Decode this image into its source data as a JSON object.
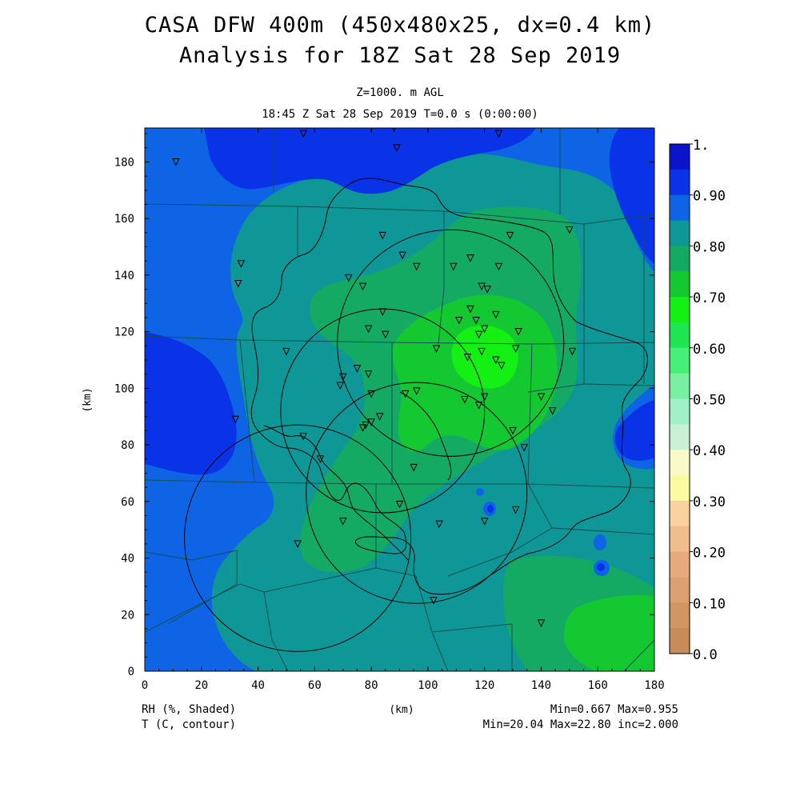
{
  "title": {
    "line1": "CASA DFW 400m (450x480x25, dx=0.4 km)",
    "line2": "Analysis for 18Z Sat 28 Sep 2019"
  },
  "subtitle": {
    "level": "Z=1000. m AGL",
    "time": "18:45 Z Sat 28 Sep 2019   T=0.0 s (0:00:00)"
  },
  "axes": {
    "x_label": "(km)",
    "y_label": "(km)",
    "x_ticks": [
      "0",
      "20",
      "40",
      "60",
      "80",
      "100",
      "120",
      "140",
      "160",
      "180"
    ],
    "y_ticks": [
      "0",
      "20",
      "40",
      "60",
      "80",
      "100",
      "120",
      "140",
      "160",
      "180"
    ],
    "x_range": [
      0,
      180
    ],
    "y_range": [
      0,
      192
    ]
  },
  "colorbar": {
    "labels": [
      "1.",
      "0.90",
      "0.80",
      "0.70",
      "0.60",
      "0.50",
      "0.40",
      "0.30",
      "0.20",
      "0.10",
      "0.0"
    ],
    "colors": [
      "#0a14c8",
      "#0a32e6",
      "#0f64e6",
      "#0f9696",
      "#14aa64",
      "#14c832",
      "#14f014",
      "#1ee650",
      "#46f078",
      "#78f0a0",
      "#a0f0c8",
      "#c8f0d2",
      "#fafac8",
      "#fafaa0",
      "#fad2a0",
      "#f0be8c",
      "#e6aa7d",
      "#dca073",
      "#d29664",
      "#c88c5a"
    ]
  },
  "footer": {
    "left1": "RH (%, Shaded)",
    "left2": "T (C, contour)",
    "center": "(km)",
    "right1": "Min=0.667 Max=0.955",
    "right2": "Min=20.04 Max=22.80 inc=2.000"
  },
  "map": {
    "colors": {
      "deep_blue": "#0a32e6",
      "blue": "#0f64e6",
      "teal": "#0f9696",
      "green": "#14aa64",
      "bright_green": "#14c832",
      "lime": "#14f014"
    },
    "radar_circles_km": [
      {
        "x": 108,
        "y": 116,
        "r": 40
      },
      {
        "x": 84,
        "y": 92,
        "r": 36
      },
      {
        "x": 96,
        "y": 63,
        "r": 39
      },
      {
        "x": 54,
        "y": 47,
        "r": 40
      }
    ],
    "stations_km": [
      [
        11,
        180
      ],
      [
        56,
        190
      ],
      [
        88,
        192
      ],
      [
        89,
        185
      ],
      [
        125,
        190
      ],
      [
        150,
        156
      ],
      [
        34,
        144
      ],
      [
        33,
        137
      ],
      [
        77,
        136
      ],
      [
        72,
        139
      ],
      [
        84,
        154
      ],
      [
        91,
        147
      ],
      [
        96,
        143
      ],
      [
        109,
        143
      ],
      [
        115,
        146
      ],
      [
        125,
        143
      ],
      [
        129,
        154
      ],
      [
        119,
        136
      ],
      [
        121,
        135
      ],
      [
        111,
        124
      ],
      [
        115,
        128
      ],
      [
        124,
        126
      ],
      [
        117,
        124
      ],
      [
        120,
        121
      ],
      [
        118,
        119
      ],
      [
        84,
        127
      ],
      [
        79,
        121
      ],
      [
        85,
        119
      ],
      [
        132,
        120
      ],
      [
        131,
        114
      ],
      [
        103,
        114
      ],
      [
        114,
        111
      ],
      [
        119,
        113
      ],
      [
        124,
        110
      ],
      [
        126,
        108
      ],
      [
        151,
        113
      ],
      [
        50,
        113
      ],
      [
        75,
        107
      ],
      [
        79,
        105
      ],
      [
        70,
        104
      ],
      [
        69,
        101
      ],
      [
        80,
        98
      ],
      [
        92,
        98
      ],
      [
        96,
        99
      ],
      [
        113,
        96
      ],
      [
        118,
        94
      ],
      [
        120,
        97
      ],
      [
        140,
        97
      ],
      [
        144,
        92
      ],
      [
        32,
        89
      ],
      [
        83,
        90
      ],
      [
        80,
        88
      ],
      [
        77,
        86
      ],
      [
        78,
        87
      ],
      [
        130,
        85
      ],
      [
        56,
        83
      ],
      [
        134,
        79
      ],
      [
        62,
        75
      ],
      [
        95,
        72
      ],
      [
        90,
        59
      ],
      [
        70,
        53
      ],
      [
        104,
        52
      ],
      [
        120,
        53
      ],
      [
        131,
        57
      ],
      [
        54,
        45
      ],
      [
        102,
        25
      ],
      [
        140,
        17
      ]
    ]
  }
}
